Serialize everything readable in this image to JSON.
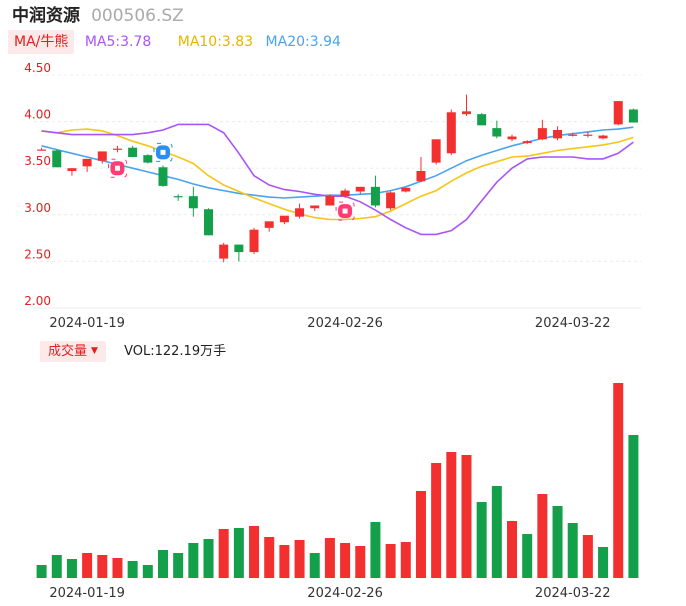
{
  "header": {
    "name": "中润资源",
    "code": "000506.SZ"
  },
  "ma_bar": {
    "toggle": "MA/牛熊",
    "ma5": "MA5:3.78",
    "ma10": "MA10:3.83",
    "ma20": "MA20:3.94"
  },
  "volume_bar": {
    "toggle": "成交量",
    "label": "VOL:122.19万手"
  },
  "colors": {
    "up": "#f23030",
    "down": "#14a04a",
    "ma5": "#a855f7",
    "ma10": "#f5c518",
    "ma20": "#4aa3f0",
    "axis": "#e02020"
  },
  "chart_data": [
    {
      "type": "candlestick",
      "ylim": [
        2.0,
        4.5
      ],
      "yticks": [
        "4.50",
        "4.00",
        "3.50",
        "3.00",
        "2.50",
        "2.00"
      ],
      "xticks": [
        {
          "index": 3,
          "label": "2024-01-19"
        },
        {
          "index": 20,
          "label": "2024-02-26"
        },
        {
          "index": 35,
          "label": "2024-03-22"
        }
      ],
      "ohlc": [
        [
          3.7,
          3.72,
          3.69,
          3.7
        ],
        [
          3.69,
          3.7,
          3.51,
          3.51
        ],
        [
          3.47,
          3.5,
          3.42,
          3.5
        ],
        [
          3.52,
          3.6,
          3.46,
          3.6
        ],
        [
          3.58,
          3.68,
          3.55,
          3.68
        ],
        [
          3.7,
          3.74,
          3.67,
          3.71
        ],
        [
          3.72,
          3.74,
          3.62,
          3.62
        ],
        [
          3.64,
          3.65,
          3.55,
          3.56
        ],
        [
          3.51,
          3.53,
          3.3,
          3.31
        ],
        [
          3.2,
          3.22,
          3.15,
          3.19
        ],
        [
          3.2,
          3.3,
          2.98,
          3.07
        ],
        [
          3.06,
          3.07,
          2.78,
          2.78
        ],
        [
          2.53,
          2.7,
          2.49,
          2.68
        ],
        [
          2.68,
          2.68,
          2.5,
          2.6
        ],
        [
          2.6,
          2.86,
          2.58,
          2.84
        ],
        [
          2.86,
          2.93,
          2.82,
          2.93
        ],
        [
          2.92,
          2.99,
          2.9,
          2.99
        ],
        [
          2.98,
          3.12,
          2.96,
          3.07
        ],
        [
          3.07,
          3.1,
          3.04,
          3.1
        ],
        [
          3.1,
          3.22,
          3.1,
          3.2
        ],
        [
          3.2,
          3.28,
          3.18,
          3.26
        ],
        [
          3.25,
          3.3,
          3.22,
          3.3
        ],
        [
          3.3,
          3.42,
          3.08,
          3.1
        ],
        [
          3.07,
          3.25,
          3.05,
          3.24
        ],
        [
          3.25,
          3.29,
          3.24,
          3.29
        ],
        [
          3.36,
          3.62,
          3.35,
          3.47
        ],
        [
          3.56,
          3.81,
          3.54,
          3.81
        ],
        [
          3.66,
          4.13,
          3.64,
          4.1
        ],
        [
          4.08,
          4.29,
          4.06,
          4.11
        ],
        [
          4.08,
          4.09,
          3.96,
          3.96
        ],
        [
          3.93,
          4.01,
          3.82,
          3.84
        ],
        [
          3.81,
          3.86,
          3.79,
          3.84
        ],
        [
          3.77,
          3.8,
          3.76,
          3.79
        ],
        [
          3.81,
          4.02,
          3.8,
          3.93
        ],
        [
          3.82,
          3.95,
          3.8,
          3.91
        ],
        [
          3.85,
          3.88,
          3.84,
          3.86
        ],
        [
          3.85,
          3.89,
          3.83,
          3.86
        ],
        [
          3.82,
          3.86,
          3.81,
          3.85
        ],
        [
          3.97,
          4.22,
          3.96,
          4.22
        ],
        [
          4.13,
          4.14,
          3.99,
          3.99
        ]
      ],
      "ma5": [
        3.9,
        3.88,
        3.86,
        3.86,
        3.86,
        3.86,
        3.86,
        3.88,
        3.91,
        3.97,
        3.97,
        3.97,
        3.88,
        3.66,
        3.42,
        3.32,
        3.27,
        3.25,
        3.22,
        3.2,
        3.2,
        3.14,
        3.05,
        2.95,
        2.86,
        2.79,
        2.79,
        2.83,
        2.95,
        3.15,
        3.35,
        3.5,
        3.6,
        3.62,
        3.62,
        3.62,
        3.6,
        3.6,
        3.66,
        3.78
      ],
      "ma10": [
        3.9,
        3.88,
        3.91,
        3.92,
        3.9,
        3.85,
        3.79,
        3.74,
        3.68,
        3.62,
        3.55,
        3.42,
        3.32,
        3.25,
        3.18,
        3.12,
        3.06,
        3.01,
        2.97,
        2.95,
        2.95,
        2.96,
        2.98,
        3.04,
        3.12,
        3.2,
        3.26,
        3.36,
        3.45,
        3.52,
        3.57,
        3.62,
        3.63,
        3.66,
        3.69,
        3.71,
        3.73,
        3.75,
        3.78,
        3.83
      ],
      "ma20": [
        3.74,
        3.7,
        3.66,
        3.62,
        3.58,
        3.54,
        3.5,
        3.46,
        3.42,
        3.38,
        3.33,
        3.29,
        3.26,
        3.23,
        3.21,
        3.19,
        3.18,
        3.19,
        3.2,
        3.21,
        3.21,
        3.22,
        3.23,
        3.26,
        3.3,
        3.36,
        3.42,
        3.5,
        3.58,
        3.64,
        3.69,
        3.74,
        3.78,
        3.82,
        3.85,
        3.87,
        3.89,
        3.91,
        3.92,
        3.94
      ]
    },
    {
      "type": "bar",
      "series_name": "成交量",
      "values": [
        13,
        23,
        19,
        25,
        23,
        20,
        17,
        13,
        28,
        25,
        35,
        39,
        49,
        50,
        52,
        41,
        33,
        38,
        25,
        40,
        35,
        32,
        56,
        34,
        36,
        87,
        115,
        126,
        123,
        76,
        92,
        57,
        44,
        84,
        72,
        55,
        43,
        31,
        195,
        143
      ],
      "colors": [
        "down",
        "down",
        "down",
        "up",
        "up",
        "up",
        "down",
        "down",
        "down",
        "down",
        "down",
        "down",
        "up",
        "down",
        "up",
        "up",
        "up",
        "up",
        "down",
        "up",
        "up",
        "up",
        "down",
        "up",
        "up",
        "up",
        "up",
        "up",
        "up",
        "down",
        "down",
        "up",
        "down",
        "up",
        "down",
        "down",
        "up",
        "down",
        "up",
        "down"
      ]
    }
  ]
}
